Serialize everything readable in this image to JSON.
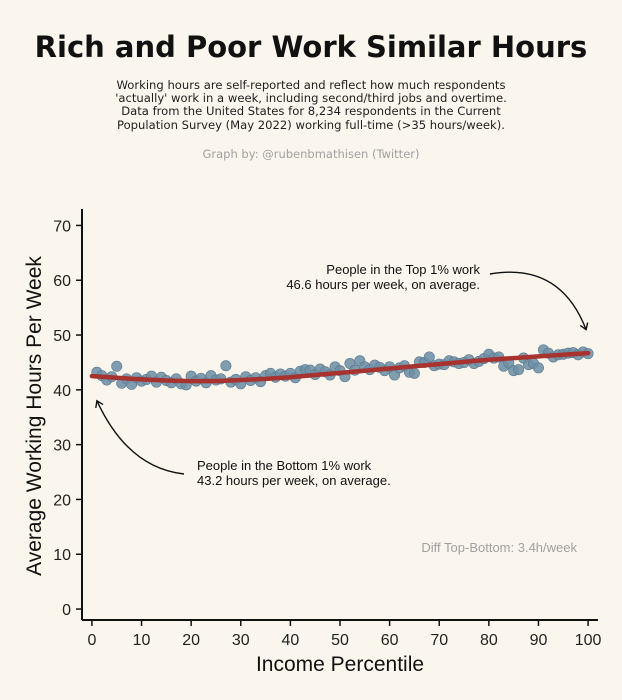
{
  "title": "Rich and Poor Work Similar Hours",
  "subtitle_lines": [
    "Working hours are self-reported and reflect how much respondents",
    "'actually' work in a week, including second/third jobs and overtime.",
    "Data from the United States for 8,234 respondents in the Current",
    "Population Survey (May 2022) working full-time (>35 hours/week)."
  ],
  "credit": "Graph by: @rubenbmathisen (Twitter)",
  "colors": {
    "background": "#faf6ee",
    "points": "#6e8fa6",
    "trend": "#a8322d"
  },
  "chart_data": {
    "type": "scatter",
    "xlabel": "Income Percentile",
    "ylabel": "Average Working Hours Per Week",
    "xlim": [
      -2,
      102
    ],
    "ylim": [
      -2,
      73
    ],
    "x_ticks": [
      0,
      10,
      20,
      30,
      40,
      50,
      60,
      70,
      80,
      90,
      100
    ],
    "y_ticks": [
      0,
      10,
      20,
      30,
      40,
      50,
      60,
      70
    ],
    "grid": false,
    "series": [
      {
        "kind": "points",
        "x": [
          1,
          2,
          3,
          4,
          5,
          6,
          7,
          8,
          9,
          10,
          11,
          12,
          13,
          14,
          15,
          16,
          17,
          18,
          19,
          20,
          21,
          22,
          23,
          24,
          25,
          26,
          27,
          28,
          29,
          30,
          31,
          32,
          33,
          34,
          35,
          36,
          37,
          38,
          39,
          40,
          41,
          42,
          43,
          44,
          45,
          46,
          47,
          48,
          49,
          50,
          51,
          52,
          53,
          54,
          55,
          56,
          57,
          58,
          59,
          60,
          61,
          62,
          63,
          64,
          65,
          66,
          67,
          68,
          69,
          70,
          71,
          72,
          73,
          74,
          75,
          76,
          77,
          78,
          79,
          80,
          81,
          82,
          83,
          84,
          85,
          86,
          87,
          88,
          89,
          90,
          91,
          92,
          93,
          94,
          95,
          96,
          97,
          98,
          99,
          100
        ],
        "y": [
          43.2,
          42.6,
          41.8,
          42.4,
          44.3,
          41.2,
          42.0,
          41.0,
          42.2,
          41.6,
          41.9,
          42.5,
          41.4,
          42.3,
          41.7,
          41.3,
          42.0,
          41.1,
          40.9,
          42.5,
          41.6,
          42.1,
          41.3,
          42.6,
          41.8,
          42.0,
          44.4,
          41.4,
          41.9,
          41.1,
          42.4,
          41.7,
          42.2,
          41.5,
          42.6,
          43.0,
          42.3,
          42.9,
          42.5,
          43.0,
          42.2,
          43.4,
          43.7,
          43.6,
          42.8,
          43.8,
          43.3,
          42.7,
          44.2,
          43.5,
          42.4,
          44.8,
          43.6,
          45.3,
          44.2,
          43.7,
          44.5,
          44.1,
          43.5,
          44.2,
          42.7,
          44.0,
          44.4,
          43.2,
          43.0,
          45.1,
          45.0,
          46.0,
          44.4,
          44.7,
          44.6,
          45.3,
          45.1,
          44.8,
          45.0,
          45.5,
          44.8,
          45.2,
          45.7,
          46.5,
          45.8,
          46.0,
          44.3,
          44.9,
          43.5,
          43.7,
          45.8,
          44.6,
          44.8,
          44.0,
          47.3,
          46.7,
          46.0,
          46.4,
          46.5,
          46.7,
          46.8,
          46.4,
          46.9,
          46.6
        ]
      },
      {
        "kind": "trend",
        "x": [
          0,
          5,
          10,
          15,
          20,
          25,
          30,
          35,
          40,
          45,
          50,
          55,
          60,
          65,
          70,
          75,
          80,
          85,
          90,
          95,
          100
        ],
        "y": [
          42.5,
          42.2,
          41.9,
          41.7,
          41.6,
          41.6,
          41.8,
          42.0,
          42.3,
          42.7,
          43.1,
          43.5,
          43.9,
          44.3,
          44.7,
          45.1,
          45.5,
          45.8,
          46.1,
          46.4,
          46.7
        ]
      }
    ],
    "annotations": {
      "top": {
        "lines": [
          "People in the Top 1% work",
          "46.6 hours per week, on average."
        ],
        "target": [
          100,
          51
        ]
      },
      "bottom": {
        "lines": [
          "People in the Bottom 1% work",
          "43.2 hours per week, on average."
        ],
        "target": [
          1,
          38
        ]
      },
      "diff": "Diff Top-Bottom: 3.4h/week"
    }
  }
}
